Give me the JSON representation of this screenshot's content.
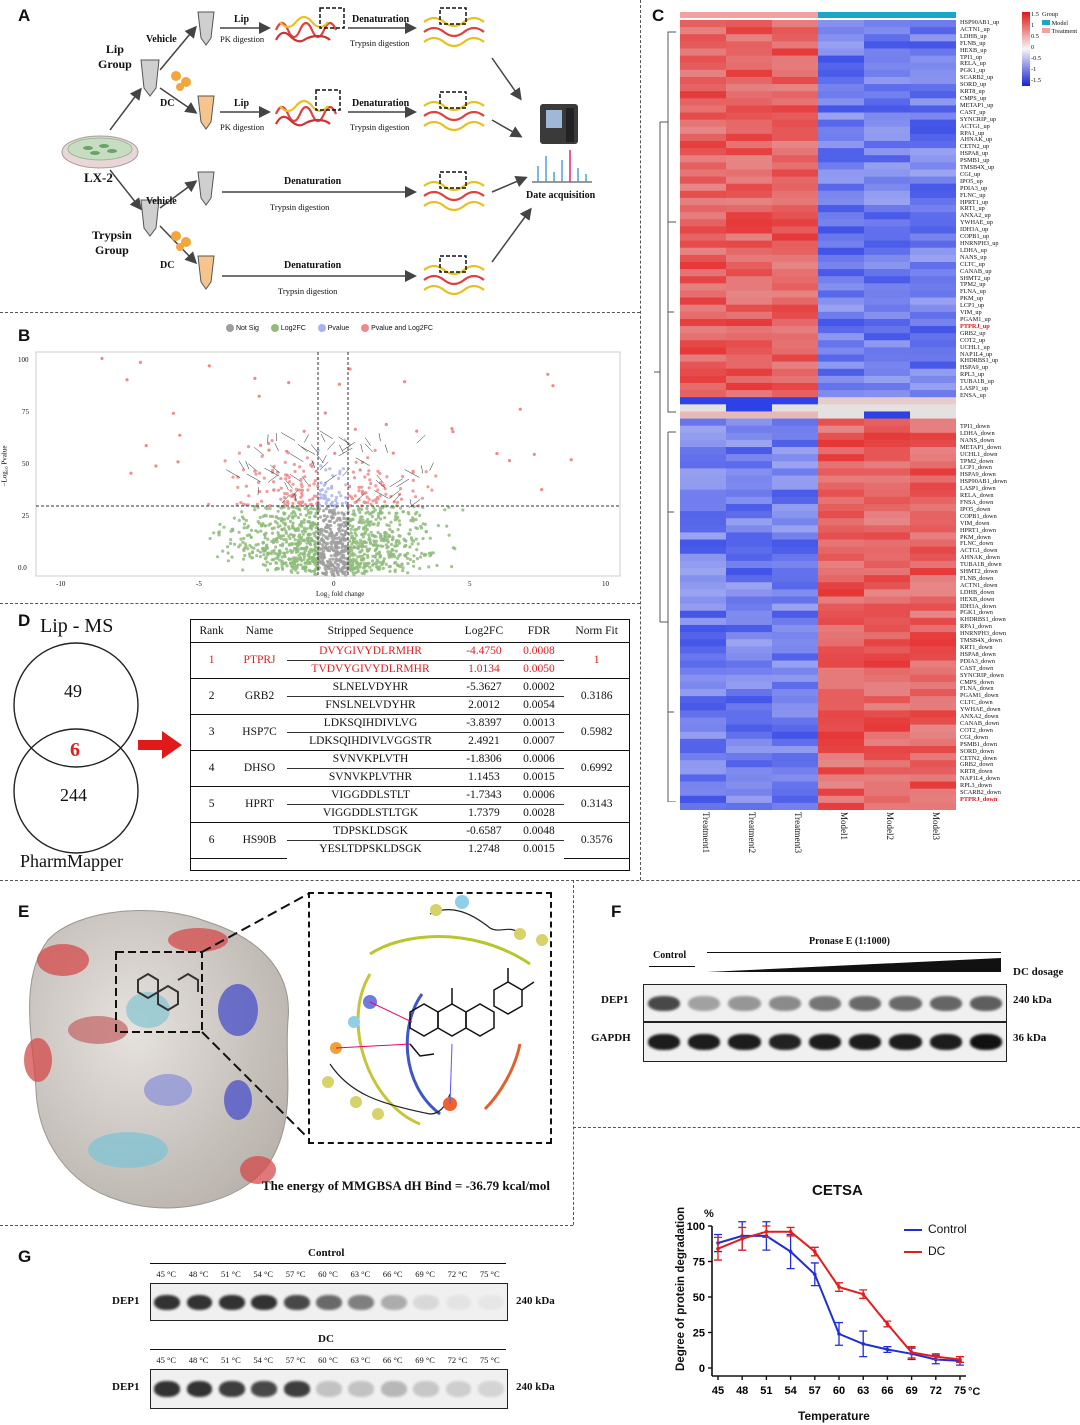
{
  "panels": {
    "A": "A",
    "B": "B",
    "C": "C",
    "D": "D",
    "E": "E",
    "F": "F",
    "G": "G"
  },
  "panelA": {
    "lip_group": "Lip\nGroup",
    "trypsin_group": "Trypsin\nGroup",
    "cell": "LX-2",
    "vehicle": "Vehicle",
    "dc": "DC",
    "lip": "Lip",
    "pk_digestion": "PK digestion",
    "denaturation": "Denaturation",
    "trypsin_digestion": "Trypsin digestion",
    "data_acquisition": "Date acquisition"
  },
  "panelB": {
    "legend": [
      "Not Sig",
      "Log2FC",
      "Pvalue",
      "Pvalue and Log2FC"
    ],
    "legend_colors": [
      "#9e9e9e",
      "#8fbc7d",
      "#a9b3f0",
      "#f08a8a"
    ],
    "xlabel": "Log₂ fold change",
    "ylabel": "−Log₁₀ Pvalue",
    "xticks": [
      "-10",
      "-5",
      "0",
      "5",
      "10"
    ],
    "yticks": [
      "100",
      "75",
      "50",
      "25",
      "0.0"
    ]
  },
  "panelC": {
    "legend_title": "Group",
    "legend_items": [
      "Model",
      "Treatment"
    ],
    "legend_colors": [
      "#1aa6c7",
      "#f2a0a0"
    ],
    "scale_ticks": [
      "1.5",
      "1",
      "0.5",
      "0",
      "-0.5",
      "-1",
      "-1.5"
    ],
    "up_genes": [
      "HSP90AB1_up",
      "ACTN1_up",
      "LDHB_up",
      "FLNB_up",
      "HEXB_up",
      "TPI1_up",
      "RELA_up",
      "PGK1_up",
      "SCARB2_up",
      "SORD_up",
      "KRT8_up",
      "CMPS_up",
      "METAP1_up",
      "CAST_up",
      "SYNCRIP_up",
      "ACTG1_up",
      "RPA1_up",
      "AHNAK_up",
      "CETN2_up",
      "HSPA8_up",
      "PSMB1_up",
      "TMSB4X_up",
      "CGI_up",
      "IPO5_up",
      "PDIA3_up",
      "FLNC_up",
      "HPRT1_up",
      "KRT1_up",
      "ANXA2_up",
      "YWHAE_up",
      "IDH3A_up",
      "COPB1_up",
      "HNRNPH3_up",
      "LDHA_up",
      "NANS_up",
      "CLTC_up",
      "CANAB_up",
      "SHMT2_up",
      "TPM2_up",
      "FLNA_up",
      "PKM_up",
      "LCP1_up",
      "VIM_up",
      "PGAM1_up",
      "PTPRJ_up",
      "GRB2_up",
      "COT2_up",
      "UCHL1_up",
      "NAP1L4_up",
      "KHDRBS1_up",
      "HSPA9_up",
      "RPL3_up",
      "TUBA1B_up",
      "LASP1_up",
      "ENSA_up"
    ],
    "down_genes": [
      "TPI1_down",
      "LDHA_down",
      "NANS_down",
      "METAP1_down",
      "UCHL1_down",
      "TPM2_down",
      "LCP1_down",
      "HSPA9_down",
      "HSP90AB1_down",
      "LASP1_down",
      "RELA_down",
      "FNSA_down",
      "IPO5_down",
      "COPB1_down",
      "VIM_down",
      "HPRT1_down",
      "PKM_down",
      "FLNC_down",
      "ACTG1_down",
      "AHNAK_down",
      "TUBA1B_down",
      "SHMT2_down",
      "FLNB_down",
      "ACTN1_down",
      "LDHB_down",
      "HEXB_down",
      "IDH3A_down",
      "PGK1_down",
      "KHDRBS1_down",
      "RPA1_down",
      "HNRNPH3_down",
      "TMSB4X_down",
      "KRT1_down",
      "HSPA8_down",
      "PDIA3_down",
      "CAST_down",
      "SYNCRIP_down",
      "CMPS_down",
      "FLNA_down",
      "PGAM1_down",
      "CLTC_down",
      "YWHAE_down",
      "ANXA2_down",
      "CANAB_down",
      "COT2_down",
      "CGI_down",
      "PSMB1_down",
      "SORD_down",
      "CETN2_down",
      "GRB2_down",
      "KRT8_down",
      "NAP1L4_down",
      "RPL3_down",
      "SCARB2_down",
      "PTPRJ_down"
    ],
    "highlight": [
      "PTPRJ_up",
      "PTPRJ_down"
    ],
    "columns": [
      "Treatment1",
      "Treatment2",
      "Treatment3",
      "Model1",
      "Model2",
      "Model3"
    ]
  },
  "panelD": {
    "venn_top": "Lip - MS",
    "venn_bottom": "PharmMapper",
    "n_top": "49",
    "n_overlap": "6",
    "n_bottom": "244",
    "headers": [
      "Rank",
      "Name",
      "Stripped Sequence",
      "Log2FC",
      "FDR",
      "Norm Fit"
    ],
    "rows": [
      {
        "rank": "1",
        "name": "PTPRJ",
        "seq": [
          "DVYGIVYDLRMHR",
          "TVDVYGIVYDLRMHR"
        ],
        "fc": [
          "-4.4750",
          "1.0134"
        ],
        "fdr": [
          "0.0008",
          "0.0050"
        ],
        "fit": "1",
        "highlight": true
      },
      {
        "rank": "2",
        "name": "GRB2",
        "seq": [
          "SLNELVDYHR",
          "FNSLNELVDYHR"
        ],
        "fc": [
          "-5.3627",
          "2.0012"
        ],
        "fdr": [
          "0.0002",
          "0.0054"
        ],
        "fit": "0.3186"
      },
      {
        "rank": "3",
        "name": "HSP7C",
        "seq": [
          "LDKSQIHDIVLVG",
          "LDKSQIHDIVLVGGSTR"
        ],
        "fc": [
          "-3.8397",
          "2.4921"
        ],
        "fdr": [
          "0.0013",
          "0.0007"
        ],
        "fit": "0.5982"
      },
      {
        "rank": "4",
        "name": "DHSO",
        "seq": [
          "SVNVKPLVTH",
          "SVNVKPLVTHR"
        ],
        "fc": [
          "-1.8306",
          "1.1453"
        ],
        "fdr": [
          "0.0006",
          "0.0015"
        ],
        "fit": "0.6992"
      },
      {
        "rank": "5",
        "name": "HPRT",
        "seq": [
          "VIGGDDLSTLT",
          "VIGGDDLSTLTGK"
        ],
        "fc": [
          "-1.7343",
          "1.7379"
        ],
        "fdr": [
          "0.0006",
          "0.0028"
        ],
        "fit": "0.3143"
      },
      {
        "rank": "6",
        "name": "HS90B",
        "seq": [
          "TDPSKLDSGK",
          "YESLTDPSKLDSGK"
        ],
        "fc": [
          "-0.6587",
          "1.2748"
        ],
        "fdr": [
          "0.0048",
          "0.0015"
        ],
        "fit": "0.3576"
      }
    ]
  },
  "panelE": {
    "energy": "The energy of MMGBSA dH Bind = -36.79 kcal/mol"
  },
  "panelF": {
    "control": "Control",
    "pronase": "Pronase E (1:1000)",
    "dc_dosage": "DC dosage",
    "rows": [
      "DEP1",
      "GAPDH"
    ],
    "sizes": [
      "240 kDa",
      "36 kDa"
    ]
  },
  "panelG": {
    "control_title": "Control",
    "dc_title": "DC",
    "temps": [
      "45 °C",
      "48 °C",
      "51 °C",
      "54 °C",
      "57 °C",
      "60 °C",
      "63 °C",
      "66 °C",
      "69 °C",
      "72 °C",
      "75 °C"
    ],
    "row_label": "DEP1",
    "size": "240 kDa"
  },
  "chart_data": {
    "type": "line",
    "title": "CETSA",
    "xlabel": "Temperature",
    "ylabel": "Degree of protein degradation",
    "y_unit": "%",
    "x_unit": "°C",
    "x": [
      45,
      48,
      51,
      54,
      57,
      60,
      63,
      66,
      69,
      72,
      75
    ],
    "ylim": [
      0,
      100
    ],
    "yticks": [
      0,
      25,
      50,
      75,
      100
    ],
    "legend_position": "top-right",
    "series": [
      {
        "name": "Control",
        "color": "#1f2fd6",
        "values": [
          88,
          93,
          93,
          82,
          66,
          24,
          17,
          13,
          10,
          6,
          5
        ],
        "err": [
          6,
          10,
          10,
          12,
          8,
          8,
          9,
          2,
          4,
          3,
          3
        ]
      },
      {
        "name": "DC",
        "color": "#e01e1e",
        "values": [
          84,
          91,
          96,
          96,
          82,
          57,
          52,
          31,
          11,
          8,
          6
        ],
        "err": [
          8,
          8,
          4,
          3,
          3,
          3,
          3,
          2,
          4,
          2,
          2
        ]
      }
    ]
  }
}
